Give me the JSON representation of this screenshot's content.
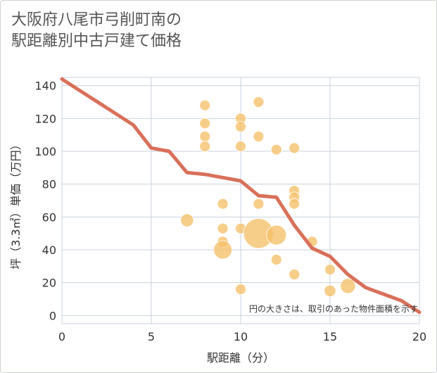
{
  "chart_data": {
    "type": "scatter",
    "title": "大阪府八尾市弓削町南の\n駅距離別中古戸建て価格",
    "xlabel": "駅距離（分）",
    "ylabel": "坪（3.3㎡）単価（万円）",
    "xlim": [
      0,
      20
    ],
    "ylim": [
      -5,
      145
    ],
    "xticks": [
      0,
      5,
      10,
      15,
      20
    ],
    "yticks": [
      0,
      20,
      40,
      60,
      80,
      100,
      120,
      140
    ],
    "grid": true,
    "annotation": "円の大きさは、取引のあった物件面積を示す",
    "colors": {
      "points": "#f5c26b",
      "line": "#d9705a",
      "grid": "#c8d2dc"
    },
    "points": [
      {
        "x": 8,
        "y": 128,
        "size": 1
      },
      {
        "x": 8,
        "y": 117,
        "size": 1
      },
      {
        "x": 8,
        "y": 109,
        "size": 1
      },
      {
        "x": 8,
        "y": 103,
        "size": 1
      },
      {
        "x": 10,
        "y": 120,
        "size": 1
      },
      {
        "x": 10,
        "y": 115,
        "size": 1
      },
      {
        "x": 10,
        "y": 103,
        "size": 1
      },
      {
        "x": 11,
        "y": 130,
        "size": 1
      },
      {
        "x": 11,
        "y": 109,
        "size": 1
      },
      {
        "x": 12,
        "y": 101,
        "size": 1
      },
      {
        "x": 13,
        "y": 102,
        "size": 1
      },
      {
        "x": 13,
        "y": 76,
        "size": 1
      },
      {
        "x": 13,
        "y": 72,
        "size": 1
      },
      {
        "x": 13,
        "y": 68,
        "size": 1
      },
      {
        "x": 9,
        "y": 68,
        "size": 1
      },
      {
        "x": 11,
        "y": 68,
        "size": 1
      },
      {
        "x": 7,
        "y": 58,
        "size": 1.5
      },
      {
        "x": 9,
        "y": 53,
        "size": 1
      },
      {
        "x": 10,
        "y": 53,
        "size": 1
      },
      {
        "x": 9,
        "y": 45,
        "size": 1
      },
      {
        "x": 9,
        "y": 40,
        "size": 3
      },
      {
        "x": 11,
        "y": 50,
        "size": 8
      },
      {
        "x": 12,
        "y": 49,
        "size": 3.5
      },
      {
        "x": 12,
        "y": 34,
        "size": 1
      },
      {
        "x": 14,
        "y": 45,
        "size": 1
      },
      {
        "x": 13,
        "y": 25,
        "size": 1
      },
      {
        "x": 15,
        "y": 28,
        "size": 1
      },
      {
        "x": 15,
        "y": 15,
        "size": 1.2
      },
      {
        "x": 16,
        "y": 18,
        "size": 2
      },
      {
        "x": 10,
        "y": 16,
        "size": 1
      }
    ],
    "trend_line": {
      "x": [
        0,
        1,
        2,
        3,
        4,
        5,
        6,
        7,
        8,
        9,
        10,
        11,
        12,
        13,
        14,
        15,
        16,
        17,
        18,
        19,
        20
      ],
      "y": [
        144,
        137,
        130,
        123,
        116,
        102,
        100,
        87,
        86,
        84,
        82,
        73,
        72,
        55,
        41,
        36,
        25,
        17,
        13,
        9,
        2
      ]
    }
  }
}
